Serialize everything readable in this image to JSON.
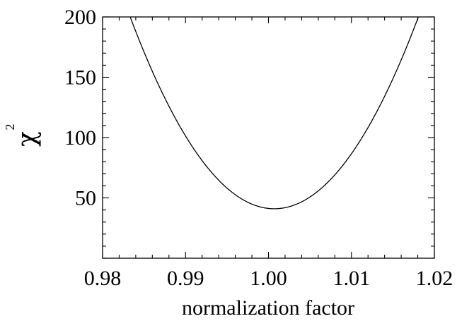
{
  "chart_data": {
    "type": "line",
    "xlabel": "normalization factor",
    "ylabel": {
      "symbol": "χ",
      "superscript": "2"
    },
    "xlim": [
      0.98,
      1.02
    ],
    "ylim": [
      0,
      200
    ],
    "x_ticks": [
      0.98,
      0.99,
      1.0,
      1.01,
      1.02
    ],
    "x_tick_labels": [
      "0.98",
      "0.99",
      "1.00",
      "1.01",
      "1.02"
    ],
    "x_minor_step": 0.002,
    "y_ticks": [
      50,
      100,
      150,
      200
    ],
    "y_tick_labels": [
      "50",
      "100",
      "150",
      "200"
    ],
    "y_minor_step": 10,
    "grid": false,
    "series": [
      {
        "curve": "parabola",
        "x_min": 1.0007,
        "y_min": 41,
        "curvature": 527000,
        "color": "#000000"
      }
    ]
  }
}
